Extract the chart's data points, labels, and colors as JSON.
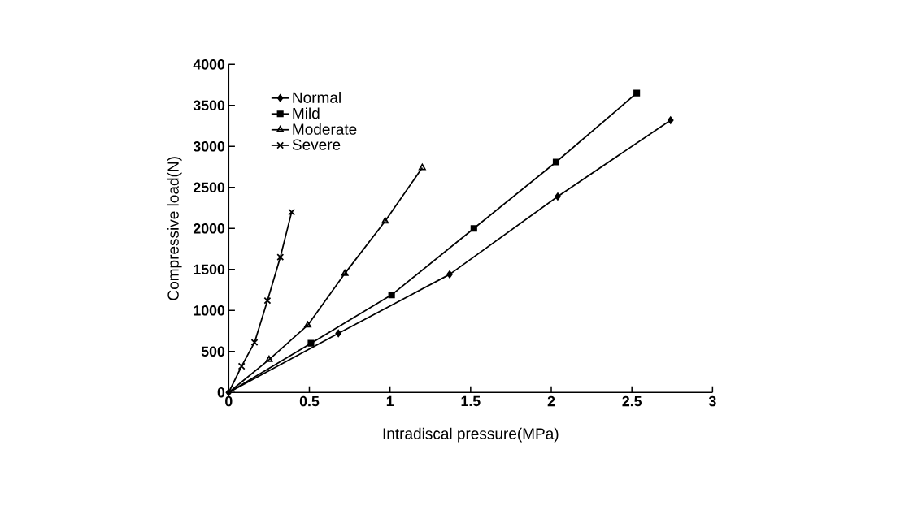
{
  "chart_data": {
    "type": "line",
    "xlabel": "Intradiscal pressure(MPa)",
    "ylabel": "Compressive load(N)",
    "xlim": [
      0,
      3
    ],
    "xticks": [
      0,
      0.5,
      1,
      1.5,
      2,
      2.5,
      3
    ],
    "ylim": [
      0,
      4000
    ],
    "yticks": [
      0,
      500,
      1000,
      1500,
      2000,
      2500,
      3000,
      3500,
      4000
    ],
    "grid": false,
    "legend": "top left",
    "line_style": "solid",
    "series": [
      {
        "name": "Normal",
        "color": "#000000",
        "marker": "diamond",
        "x": [
          0,
          0.68,
          1.37,
          2.04,
          2.74
        ],
        "values": [
          0,
          720,
          1440,
          2390,
          3320
        ]
      },
      {
        "name": "Mild",
        "color": "#000000",
        "marker": "square",
        "x": [
          0,
          0.51,
          1.01,
          1.52,
          2.03,
          2.53
        ],
        "values": [
          0,
          600,
          1190,
          2000,
          2810,
          3650
        ]
      },
      {
        "name": "Moderate",
        "color": "#000000",
        "marker": "triangle",
        "x": [
          0,
          0.25,
          0.49,
          0.72,
          0.97,
          1.2
        ],
        "values": [
          0,
          400,
          820,
          1450,
          2090,
          2740
        ]
      },
      {
        "name": "Severe",
        "color": "#000000",
        "marker": "cross",
        "x": [
          0,
          0.08,
          0.16,
          0.24,
          0.32,
          0.39
        ],
        "values": [
          0,
          320,
          610,
          1120,
          1650,
          2200
        ]
      }
    ]
  }
}
